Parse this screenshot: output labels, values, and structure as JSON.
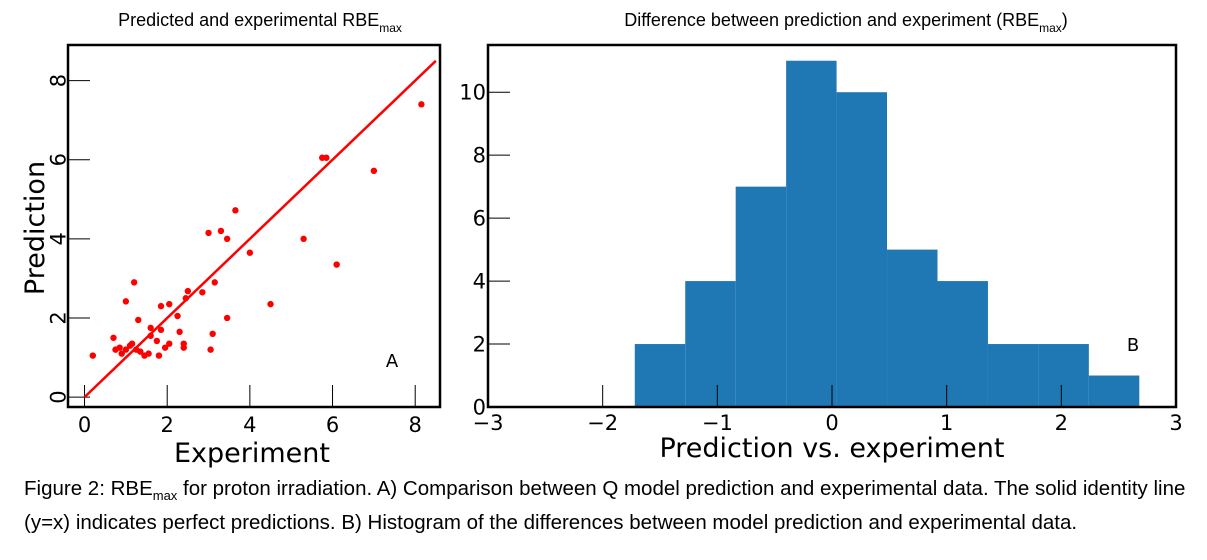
{
  "chart_data": [
    {
      "type": "scatter",
      "title": "Predicted and experimental RBE",
      "title_subscript": "max",
      "xlabel": "Experiment",
      "ylabel": "Prediction",
      "xlim": [
        -0.4,
        8.6
      ],
      "ylim": [
        -0.25,
        8.9
      ],
      "xticks": [
        0,
        2,
        4,
        6,
        8
      ],
      "yticks": [
        0,
        2,
        4,
        6,
        8
      ],
      "annotation": "A",
      "marker_color": "#ff0000",
      "identity_line": {
        "x": [
          0,
          8.5
        ],
        "y": [
          0,
          8.5
        ],
        "color": "#ff0000"
      },
      "grid": false,
      "points": [
        [
          0.2,
          1.05
        ],
        [
          0.7,
          1.5
        ],
        [
          0.75,
          1.2
        ],
        [
          0.85,
          1.25
        ],
        [
          0.9,
          1.1
        ],
        [
          1.0,
          2.42
        ],
        [
          1.0,
          1.2
        ],
        [
          1.1,
          1.3
        ],
        [
          1.15,
          1.35
        ],
        [
          1.2,
          2.9
        ],
        [
          1.25,
          1.2
        ],
        [
          1.3,
          1.95
        ],
        [
          1.35,
          1.15
        ],
        [
          1.45,
          1.05
        ],
        [
          1.55,
          1.1
        ],
        [
          1.6,
          1.55
        ],
        [
          1.6,
          1.75
        ],
        [
          1.75,
          1.42
        ],
        [
          1.8,
          1.05
        ],
        [
          1.85,
          1.7
        ],
        [
          1.85,
          2.3
        ],
        [
          1.95,
          1.25
        ],
        [
          2.05,
          1.35
        ],
        [
          2.05,
          2.35
        ],
        [
          2.25,
          2.05
        ],
        [
          2.3,
          1.65
        ],
        [
          2.4,
          1.35
        ],
        [
          2.4,
          1.25
        ],
        [
          2.45,
          2.5
        ],
        [
          2.5,
          2.68
        ],
        [
          2.85,
          2.65
        ],
        [
          3.0,
          4.15
        ],
        [
          3.05,
          1.2
        ],
        [
          3.1,
          1.6
        ],
        [
          3.15,
          2.9
        ],
        [
          3.3,
          4.2
        ],
        [
          3.45,
          4.0
        ],
        [
          3.45,
          2.0
        ],
        [
          3.65,
          4.72
        ],
        [
          4.0,
          3.65
        ],
        [
          4.5,
          2.35
        ],
        [
          5.3,
          4.0
        ],
        [
          5.75,
          6.05
        ],
        [
          5.85,
          6.05
        ],
        [
          6.1,
          3.35
        ],
        [
          7.0,
          5.72
        ],
        [
          8.15,
          7.4
        ]
      ]
    },
    {
      "type": "bar",
      "subtype": "histogram",
      "title": "Difference between prediction and experiment (RBE",
      "title_subscript": "max",
      "title_suffix": ")",
      "xlabel": "Prediction vs. experiment",
      "ylabel": "",
      "xlim": [
        -3,
        3
      ],
      "ylim": [
        0,
        11.5
      ],
      "xticks": [
        -3,
        -2,
        -1,
        0,
        1,
        2,
        3
      ],
      "xtick_labels": [
        "−3",
        "−2",
        "−1",
        "0",
        "1",
        "2",
        "3"
      ],
      "yticks": [
        0,
        2,
        4,
        6,
        8,
        10
      ],
      "annotation": "B",
      "bar_color": "#1f77b4",
      "grid": false,
      "bin_edges": [
        -1.72,
        -1.28,
        -0.84,
        -0.4,
        0.04,
        0.48,
        0.92,
        1.36,
        1.8,
        2.24,
        2.68
      ],
      "counts": [
        2,
        4,
        7,
        11,
        10,
        5,
        4,
        2,
        2,
        1
      ]
    }
  ],
  "caption": {
    "prefix": "Figure 2: RBE",
    "sub": "max",
    "text": " for proton irradiation. A) Comparison between Q model prediction and experimental data. The solid identity line (y=x) indicates perfect predictions. B) Histogram of the differences between model prediction and experimental data."
  }
}
